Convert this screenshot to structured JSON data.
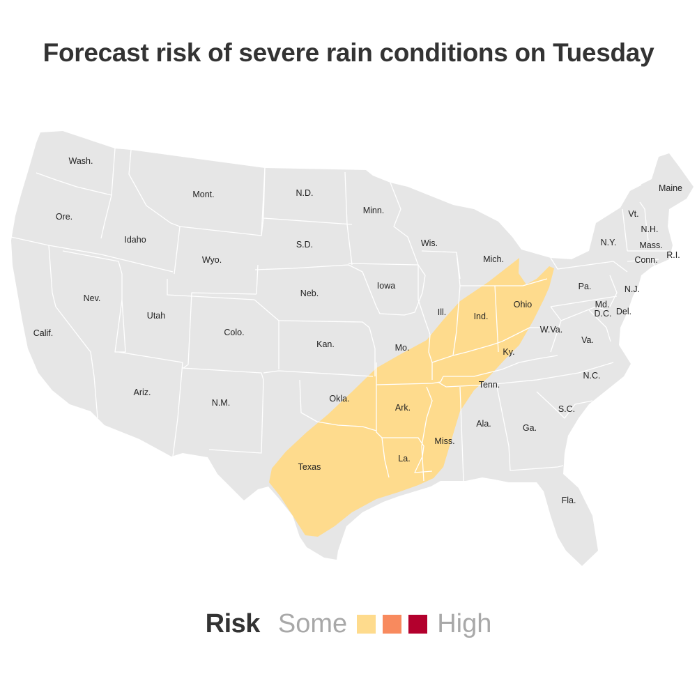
{
  "title": "Forecast risk of severe rain conditions on Tuesday",
  "colors": {
    "land": "#e6e6e6",
    "border": "#ffffff",
    "risk_some": "#fedb8d",
    "risk_moderate": "#f88a5e",
    "risk_high": "#b3002d"
  },
  "states": {
    "wa": "Wash.",
    "or": "Ore.",
    "ca": "Calif.",
    "id": "Idaho",
    "nv": "Nev.",
    "mt": "Mont.",
    "wy": "Wyo.",
    "ut": "Utah",
    "az": "Ariz.",
    "co": "Colo.",
    "nm": "N.M.",
    "nd": "N.D.",
    "sd": "S.D.",
    "ne": "Neb.",
    "ks": "Kan.",
    "ok": "Okla.",
    "tx": "Texas",
    "mn": "Minn.",
    "ia": "Iowa",
    "mo": "Mo.",
    "ar": "Ark.",
    "la": "La.",
    "wi": "Wis.",
    "il": "Ill.",
    "mi": "Mich.",
    "in": "Ind.",
    "oh": "Ohio",
    "ky": "Ky.",
    "tn": "Tenn.",
    "ms": "Miss.",
    "al": "Ala.",
    "ga": "Ga.",
    "fl": "Fla.",
    "sc": "S.C.",
    "nc": "N.C.",
    "va": "Va.",
    "wv": "W.Va.",
    "pa": "Pa.",
    "ny": "N.Y.",
    "vt": "Vt.",
    "nh": "N.H.",
    "me": "Maine",
    "ma": "Mass.",
    "ri": "R.I.",
    "ct": "Conn.",
    "nj": "N.J.",
    "de": "Del.",
    "md": "Md.",
    "dc": "D.C."
  },
  "legend": {
    "title": "Risk",
    "low_label": "Some",
    "high_label": "High",
    "levels": [
      "some",
      "moderate",
      "high"
    ]
  }
}
